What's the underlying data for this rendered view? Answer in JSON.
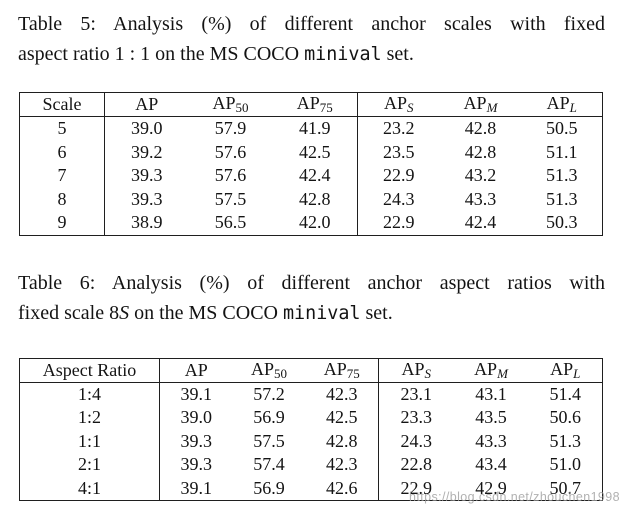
{
  "page": {
    "background": "#ffffff",
    "text_color": "#161616",
    "border_color": "#1f1f1f"
  },
  "table5": {
    "caption": {
      "label": "Table 5:",
      "line1": "Analysis (%) of different anchor scales with fixed",
      "line2_before": "aspect ratio 1 : 1 on the MS COCO ",
      "line2_mono": "minival",
      "line2_after": " set."
    },
    "headers": [
      {
        "text": "Scale",
        "sub": "",
        "italic_sub": false
      },
      {
        "text": "AP",
        "sub": "",
        "italic_sub": false
      },
      {
        "text": "AP",
        "sub": "50",
        "italic_sub": false
      },
      {
        "text": "AP",
        "sub": "75",
        "italic_sub": false
      },
      {
        "text": "AP",
        "sub": "S",
        "italic_sub": true
      },
      {
        "text": "AP",
        "sub": "M",
        "italic_sub": true
      },
      {
        "text": "AP",
        "sub": "L",
        "italic_sub": true
      }
    ],
    "rows": [
      [
        "5",
        "39.0",
        "57.9",
        "41.9",
        "23.2",
        "42.8",
        "50.5"
      ],
      [
        "6",
        "39.2",
        "57.6",
        "42.5",
        "23.5",
        "42.8",
        "51.1"
      ],
      [
        "7",
        "39.3",
        "57.6",
        "42.4",
        "22.9",
        "43.2",
        "51.3"
      ],
      [
        "8",
        "39.3",
        "57.5",
        "42.8",
        "24.3",
        "43.3",
        "51.3"
      ],
      [
        "9",
        "38.9",
        "56.5",
        "42.0",
        "22.9",
        "42.4",
        "50.3"
      ]
    ]
  },
  "table6": {
    "caption": {
      "label": "Table 6:",
      "line1": "Analysis (%) of different anchor aspect ratios with",
      "line2_before": "fixed scale 8",
      "line2_italic": "S",
      "line2_mid": " on the MS COCO ",
      "line2_mono": "minival",
      "line2_after": " set."
    },
    "headers": [
      {
        "text": "Aspect Ratio",
        "sub": "",
        "italic_sub": false
      },
      {
        "text": "AP",
        "sub": "",
        "italic_sub": false
      },
      {
        "text": "AP",
        "sub": "50",
        "italic_sub": false
      },
      {
        "text": "AP",
        "sub": "75",
        "italic_sub": false
      },
      {
        "text": "AP",
        "sub": "S",
        "italic_sub": true
      },
      {
        "text": "AP",
        "sub": "M",
        "italic_sub": true
      },
      {
        "text": "AP",
        "sub": "L",
        "italic_sub": true
      }
    ],
    "rows": [
      [
        "1:4",
        "39.1",
        "57.2",
        "42.3",
        "23.1",
        "43.1",
        "51.4"
      ],
      [
        "1:2",
        "39.0",
        "56.9",
        "42.5",
        "23.3",
        "43.5",
        "50.6"
      ],
      [
        "1:1",
        "39.3",
        "57.5",
        "42.8",
        "24.3",
        "43.3",
        "51.3"
      ],
      [
        "2:1",
        "39.3",
        "57.4",
        "42.3",
        "22.8",
        "43.4",
        "51.0"
      ],
      [
        "4:1",
        "39.1",
        "56.9",
        "42.6",
        "22.9",
        "42.9",
        "50.7"
      ]
    ]
  },
  "watermark": {
    "text": "https://blog.csdn.net/zhouchen1998",
    "color": "#9e9e9e"
  }
}
